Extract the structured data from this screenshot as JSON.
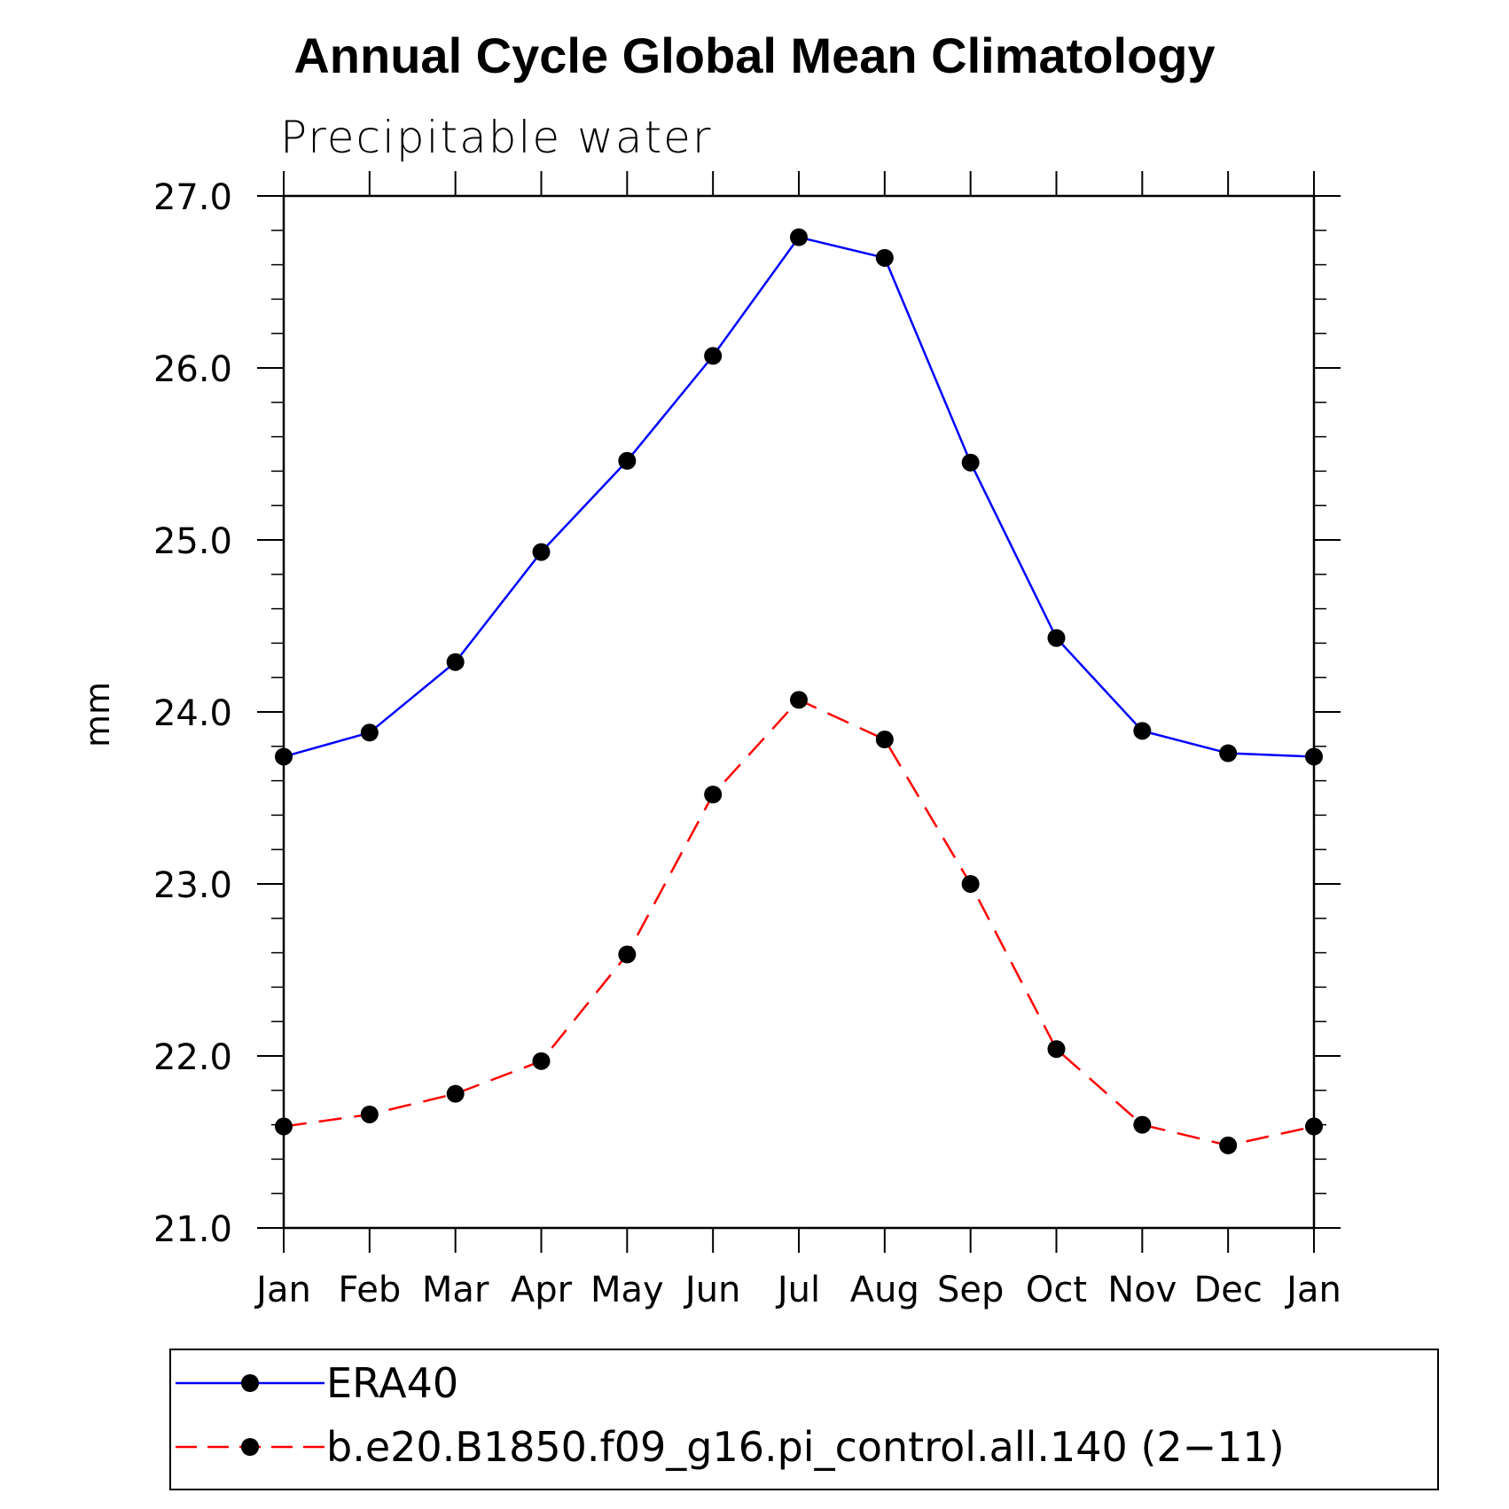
{
  "chart_data": {
    "type": "line",
    "title": "Annual Cycle Global Mean Climatology",
    "subtitle": "Precipitable water",
    "xlabel": "",
    "ylabel": "mm",
    "categories": [
      "Jan",
      "Feb",
      "Mar",
      "Apr",
      "May",
      "Jun",
      "Jul",
      "Aug",
      "Sep",
      "Oct",
      "Nov",
      "Dec",
      "Jan"
    ],
    "ylim": [
      21.0,
      27.0
    ],
    "yticks": [
      "21.0",
      "22.0",
      "23.0",
      "24.0",
      "25.0",
      "26.0",
      "27.0"
    ],
    "grid": false,
    "legend_position": "bottom",
    "series": [
      {
        "name": "ERA40",
        "color": "#0000ff",
        "style": "solid",
        "marker": "filled-circle",
        "values": [
          23.74,
          23.88,
          24.29,
          24.93,
          25.46,
          26.07,
          26.76,
          26.64,
          25.45,
          24.43,
          23.89,
          23.76,
          23.74
        ]
      },
      {
        "name": "b.e20.B1850.f09_g16.pi_control.all.140 (2−11)",
        "color": "#ff0000",
        "style": "dashed",
        "marker": "filled-circle",
        "values": [
          21.59,
          21.66,
          21.78,
          21.97,
          22.59,
          23.52,
          24.07,
          23.84,
          23.0,
          22.04,
          21.6,
          21.48,
          21.59
        ]
      }
    ]
  }
}
